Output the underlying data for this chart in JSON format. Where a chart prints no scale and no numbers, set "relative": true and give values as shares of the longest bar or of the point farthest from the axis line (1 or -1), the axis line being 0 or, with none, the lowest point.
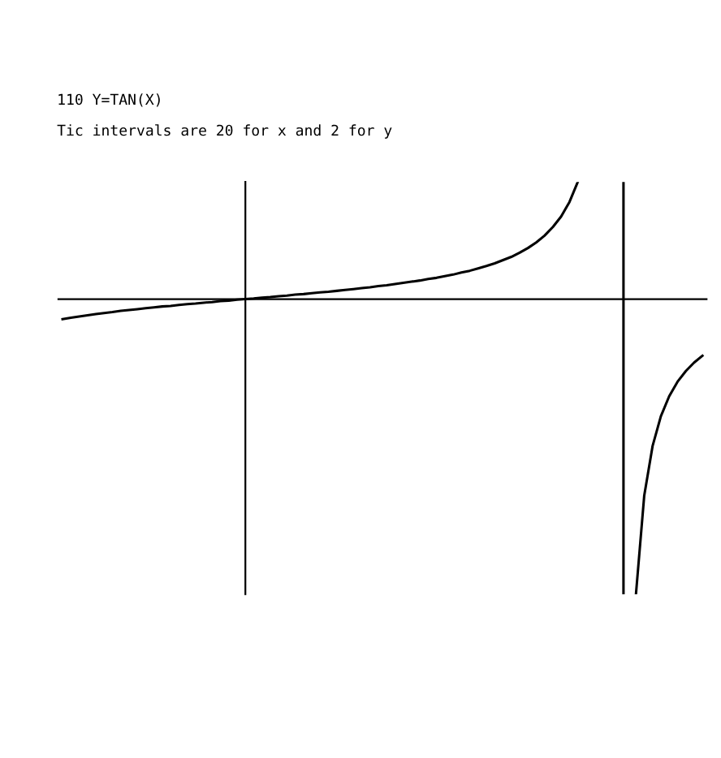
{
  "chart_data": {
    "type": "line",
    "title": "110 Y=TAN(X)",
    "subtitle": "Tic intervals are 20 for x and 2 for y",
    "relative": true,
    "categories": [
      null,
      null,
      null,
      null,
      null,
      null,
      null,
      null,
      null,
      null,
      null,
      null,
      null,
      null,
      null,
      null,
      null,
      null,
      null,
      null,
      null,
      null,
      null,
      null,
      null,
      null,
      null,
      null,
      null,
      null,
      null,
      null,
      null,
      null,
      null,
      null,
      null,
      null,
      null,
      null,
      null,
      null,
      null,
      null,
      null,
      null,
      null,
      null,
      null,
      null,
      null,
      null,
      null,
      null,
      null,
      null,
      null,
      null,
      null,
      null,
      null,
      null,
      null,
      null,
      null,
      null,
      null,
      null,
      null,
      null,
      null,
      null,
      null,
      null,
      null,
      null,
      null,
      null
    ],
    "series": [
      {
        "color": "#000000",
        "values": [
          -0.068,
          -0.063,
          -0.059,
          -0.055,
          -0.051,
          -0.047,
          -0.044,
          -0.04,
          -0.037,
          -0.034,
          -0.031,
          -0.028,
          -0.025,
          -0.023,
          -0.02,
          -0.017,
          -0.015,
          -0.012,
          -0.01,
          -0.007,
          -0.005,
          -0.002,
          0,
          0.002,
          0.005,
          0.007,
          0.01,
          0.012,
          0.015,
          0.017,
          0.02,
          0.023,
          0.025,
          0.028,
          0.031,
          0.034,
          0.037,
          0.04,
          0.044,
          0.047,
          0.051,
          0.055,
          0.059,
          0.063,
          0.068,
          0.072,
          0.078,
          0.083,
          0.09,
          0.096,
          0.104,
          0.112,
          0.121,
          0.132,
          0.143,
          0.157,
          0.173,
          0.192,
          0.215,
          0.244,
          0.28,
          0.329,
          0.397,
          null,
          null,
          null,
          null,
          null,
          null,
          null,
          null,
          null,
          null,
          null,
          null,
          null,
          null,
          null
        ]
      },
      {
        "color": "#000000",
        "values": [
          null,
          null,
          null,
          null,
          null,
          null,
          null,
          null,
          null,
          null,
          null,
          null,
          null,
          null,
          null,
          null,
          null,
          null,
          null,
          null,
          null,
          null,
          null,
          null,
          null,
          null,
          null,
          null,
          null,
          null,
          null,
          null,
          null,
          null,
          null,
          null,
          null,
          null,
          null,
          null,
          null,
          null,
          null,
          null,
          null,
          null,
          null,
          null,
          null,
          null,
          null,
          null,
          null,
          null,
          null,
          null,
          null,
          null,
          null,
          null,
          null,
          null,
          null,
          null,
          null,
          null,
          null,
          null,
          null,
          -1,
          -0.665,
          -0.498,
          -0.397,
          -0.329,
          -0.28,
          -0.244,
          -0.215,
          -0.192
        ]
      }
    ],
    "grid": false,
    "legend": false,
    "marker": "none",
    "line_style": "solid"
  }
}
